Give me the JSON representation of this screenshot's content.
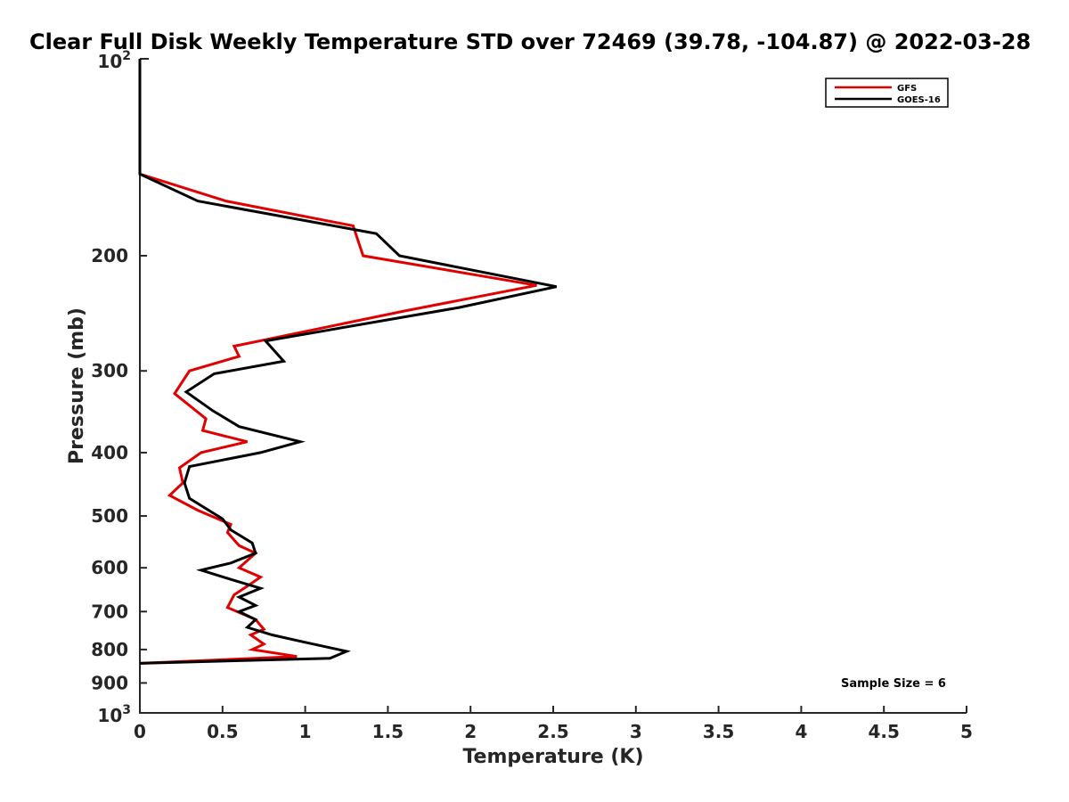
{
  "chart_data": {
    "type": "line",
    "title": "Clear Full Disk Weekly Temperature STD over 72469 (39.78, -104.87) @ 2022-03-28",
    "xlabel": "Temperature (K)",
    "ylabel": "Pressure (mb)",
    "xlim": [
      0,
      5
    ],
    "ylim": [
      100,
      1000
    ],
    "y_scale": "log",
    "y_reversed": true,
    "x_ticks": [
      "0",
      "0.5",
      "1",
      "1.5",
      "2",
      "2.5",
      "3",
      "3.5",
      "4",
      "4.5",
      "5"
    ],
    "y_ticks": [
      {
        "value": 200,
        "label": "200"
      },
      {
        "value": 300,
        "label": "300"
      },
      {
        "value": 400,
        "label": "400"
      },
      {
        "value": 500,
        "label": "500"
      },
      {
        "value": 600,
        "label": "600"
      },
      {
        "value": 700,
        "label": "700"
      },
      {
        "value": 800,
        "label": "800"
      },
      {
        "value": 900,
        "label": "900"
      }
    ],
    "y_decade_labels": [
      {
        "value": 100,
        "base": "10",
        "exp": "2"
      },
      {
        "value": 1000,
        "base": "10",
        "exp": "3"
      }
    ],
    "legend": {
      "placement": "top-right"
    },
    "annotation": "Sample Size = 6",
    "grid": false,
    "series": [
      {
        "name": "GFS",
        "color": "#e00000",
        "points": [
          [
            0,
            100
          ],
          [
            0,
            150
          ],
          [
            0.52,
            165
          ],
          [
            1.29,
            180
          ],
          [
            1.35,
            200
          ],
          [
            2.4,
            222
          ],
          [
            1.6,
            243
          ],
          [
            0.57,
            275
          ],
          [
            0.6,
            285
          ],
          [
            0.3,
            300
          ],
          [
            0.21,
            325
          ],
          [
            0.4,
            355
          ],
          [
            0.38,
            370
          ],
          [
            0.65,
            385
          ],
          [
            0.37,
            400
          ],
          [
            0.24,
            422
          ],
          [
            0.26,
            445
          ],
          [
            0.18,
            465
          ],
          [
            0.35,
            490
          ],
          [
            0.55,
            515
          ],
          [
            0.53,
            530
          ],
          [
            0.6,
            555
          ],
          [
            0.7,
            570
          ],
          [
            0.6,
            600
          ],
          [
            0.73,
            620
          ],
          [
            0.65,
            640
          ],
          [
            0.57,
            660
          ],
          [
            0.53,
            690
          ],
          [
            0.7,
            720
          ],
          [
            0.75,
            745
          ],
          [
            0.67,
            760
          ],
          [
            0.75,
            785
          ],
          [
            0.68,
            800
          ],
          [
            0.95,
            820
          ],
          [
            0,
            840
          ]
        ]
      },
      {
        "name": "GOES-16",
        "color": "#000000",
        "points": [
          [
            0,
            100
          ],
          [
            0,
            150
          ],
          [
            0.35,
            165
          ],
          [
            1.43,
            185
          ],
          [
            1.57,
            200
          ],
          [
            2.52,
            223
          ],
          [
            1.93,
            240
          ],
          [
            0.76,
            270
          ],
          [
            0.87,
            290
          ],
          [
            0.45,
            303
          ],
          [
            0.28,
            323
          ],
          [
            0.44,
            345
          ],
          [
            0.6,
            365
          ],
          [
            0.97,
            385
          ],
          [
            0.73,
            400
          ],
          [
            0.3,
            420
          ],
          [
            0.27,
            445
          ],
          [
            0.3,
            470
          ],
          [
            0.5,
            505
          ],
          [
            0.55,
            525
          ],
          [
            0.68,
            550
          ],
          [
            0.7,
            570
          ],
          [
            0.55,
            590
          ],
          [
            0.37,
            605
          ],
          [
            0.55,
            625
          ],
          [
            0.73,
            645
          ],
          [
            0.6,
            665
          ],
          [
            0.7,
            685
          ],
          [
            0.6,
            700
          ],
          [
            0.7,
            720
          ],
          [
            0.65,
            740
          ],
          [
            0.8,
            760
          ],
          [
            1.0,
            780
          ],
          [
            1.25,
            805
          ],
          [
            1.15,
            825
          ],
          [
            0,
            840
          ]
        ]
      }
    ]
  }
}
